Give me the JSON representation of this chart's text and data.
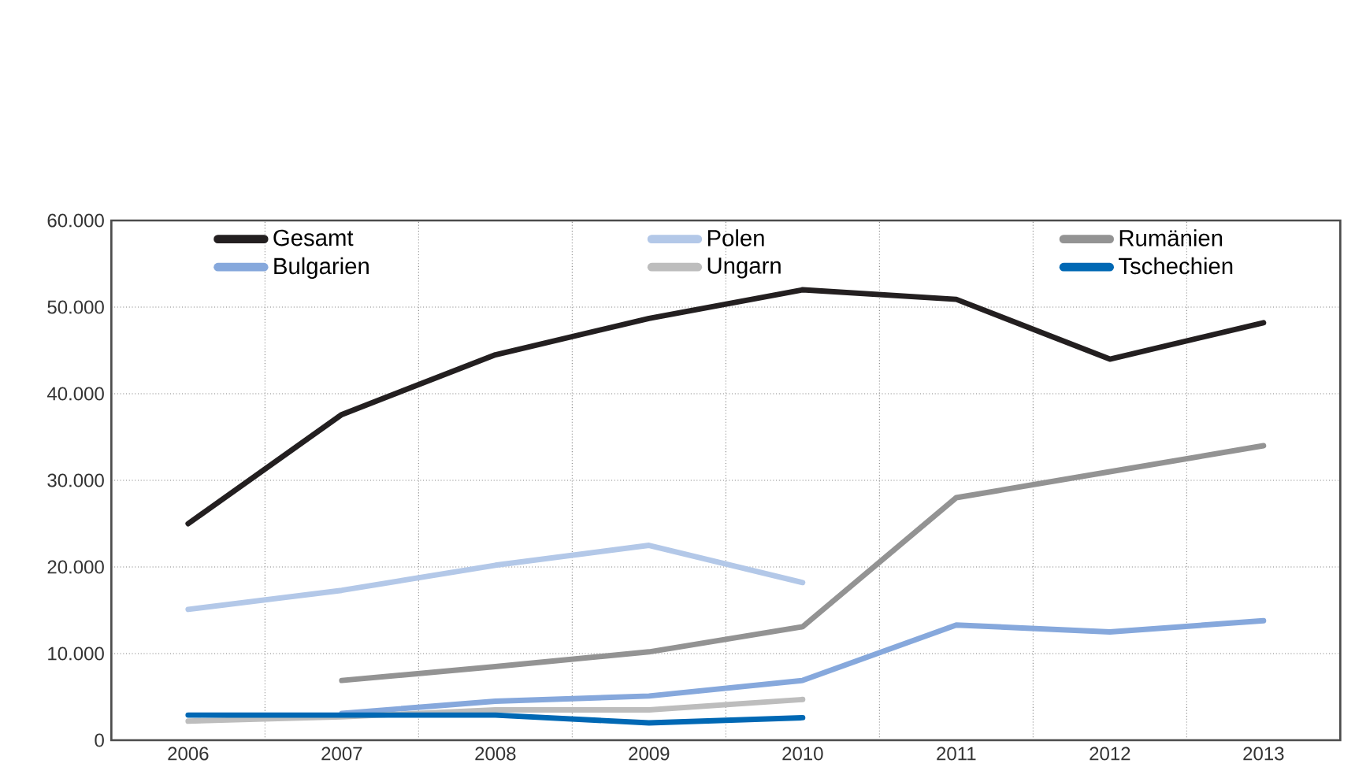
{
  "chart_data": {
    "type": "line",
    "categories": [
      "2006",
      "2007",
      "2008",
      "2009",
      "2010",
      "2011",
      "2012",
      "2013"
    ],
    "series": [
      {
        "name": "Gesamt",
        "color": "#231f20",
        "values": [
          25000,
          37600,
          44500,
          48700,
          52000,
          50900,
          44000,
          48200
        ]
      },
      {
        "name": "Polen",
        "color": "#b3c8e8",
        "values": [
          15100,
          17300,
          20200,
          22500,
          18200,
          null,
          null,
          null
        ]
      },
      {
        "name": "Rumänien",
        "color": "#939393",
        "values": [
          null,
          6900,
          8500,
          10200,
          13100,
          28000,
          31000,
          34000
        ]
      },
      {
        "name": "Bulgarien",
        "color": "#86a8dc",
        "values": [
          null,
          3100,
          4500,
          5100,
          6900,
          13300,
          12500,
          13800
        ]
      },
      {
        "name": "Ungarn",
        "color": "#bdbdbd",
        "values": [
          2200,
          2700,
          3500,
          3500,
          4700,
          null,
          null,
          null
        ]
      },
      {
        "name": "Tschechien",
        "color": "#0068b4",
        "values": [
          2900,
          2900,
          2900,
          2000,
          2600,
          null,
          null,
          null
        ]
      }
    ],
    "ylim": [
      0,
      60000
    ],
    "yticks": [
      {
        "value": 0,
        "label": "0"
      },
      {
        "value": 10000,
        "label": "10.000"
      },
      {
        "value": 20000,
        "label": "20.000"
      },
      {
        "value": 30000,
        "label": "30.000"
      },
      {
        "value": 40000,
        "label": "40.000"
      },
      {
        "value": 50000,
        "label": "50.000"
      },
      {
        "value": 60000,
        "label": "60.000"
      }
    ],
    "grid": true,
    "legend": "top",
    "marker": "none",
    "line_style": "solid"
  }
}
